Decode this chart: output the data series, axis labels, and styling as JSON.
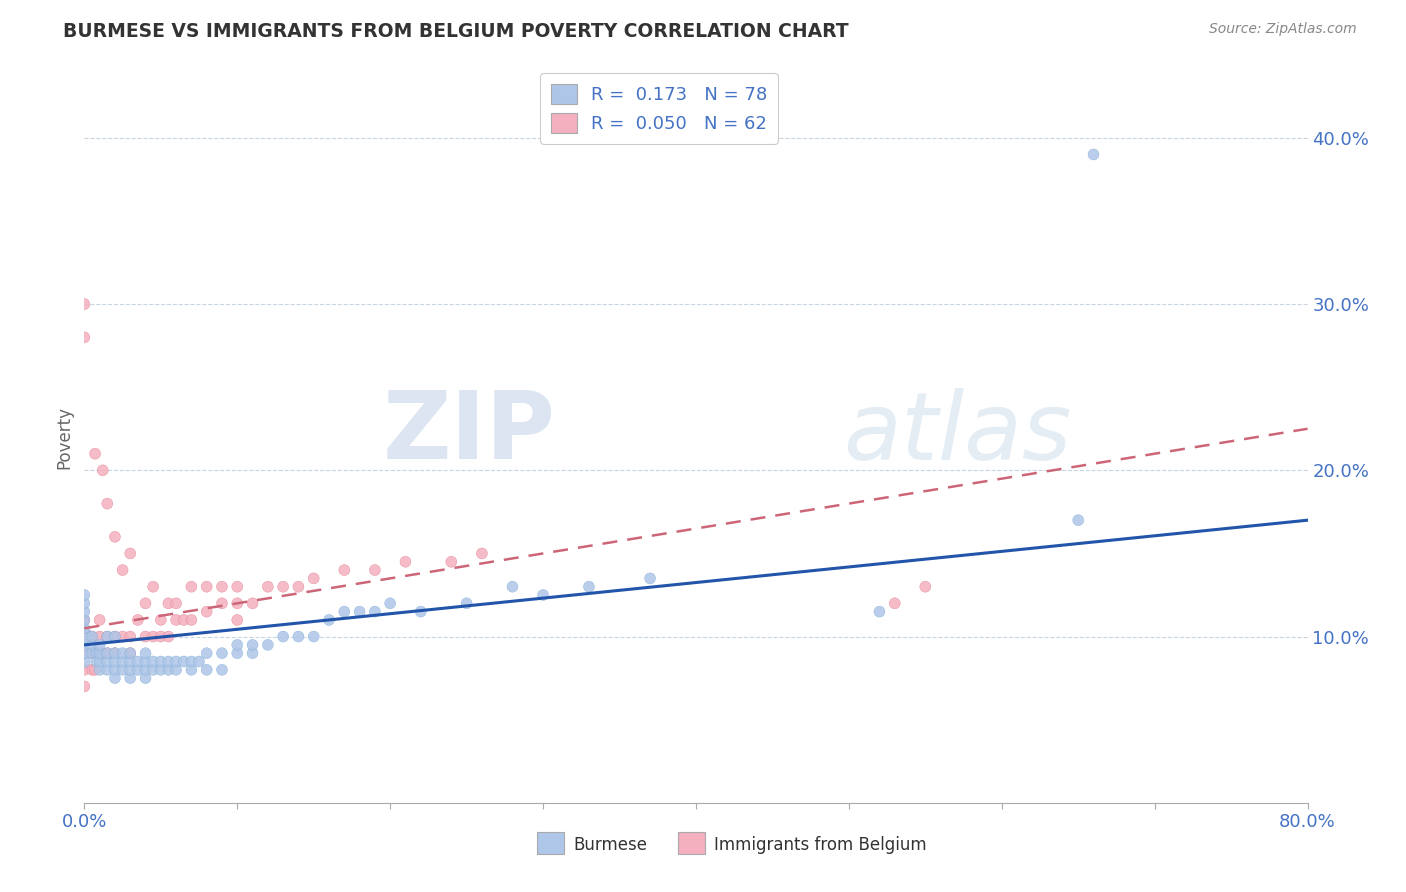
{
  "title": "BURMESE VS IMMIGRANTS FROM BELGIUM POVERTY CORRELATION CHART",
  "source": "Source: ZipAtlas.com",
  "ylabel": "Poverty",
  "ytick_labels": [
    "10.0%",
    "20.0%",
    "30.0%",
    "40.0%"
  ],
  "ytick_values": [
    0.1,
    0.2,
    0.3,
    0.4
  ],
  "xlim": [
    0.0,
    0.8
  ],
  "ylim": [
    0.0,
    0.44
  ],
  "watermark_zip": "ZIP",
  "watermark_atlas": "atlas",
  "burmese_color": "#aec6e8",
  "burmese_edge_color": "#7baad4",
  "belgium_color": "#f4b0be",
  "belgium_edge_color": "#e07a90",
  "burmese_line_color": "#2255aa",
  "belgium_line_color": "#cc6677",
  "blue_color": "#4472c4",
  "burmese_R": 0.173,
  "burmese_N": 78,
  "belgium_R": 0.05,
  "belgium_N": 62,
  "bur_line_x0": 0.0,
  "bur_line_y0": 0.095,
  "bur_line_x1": 0.8,
  "bur_line_y1": 0.17,
  "bel_line_x0": 0.0,
  "bel_line_y0": 0.105,
  "bel_line_x1": 0.8,
  "bel_line_y1": 0.225,
  "burmese_x": [
    0.0,
    0.0,
    0.0,
    0.0,
    0.0,
    0.0,
    0.0,
    0.0,
    0.0,
    0.005,
    0.005,
    0.005,
    0.008,
    0.008,
    0.01,
    0.01,
    0.01,
    0.01,
    0.015,
    0.015,
    0.015,
    0.015,
    0.02,
    0.02,
    0.02,
    0.02,
    0.02,
    0.025,
    0.025,
    0.025,
    0.03,
    0.03,
    0.03,
    0.03,
    0.035,
    0.035,
    0.04,
    0.04,
    0.04,
    0.04,
    0.045,
    0.045,
    0.05,
    0.05,
    0.055,
    0.055,
    0.06,
    0.06,
    0.065,
    0.07,
    0.07,
    0.075,
    0.08,
    0.08,
    0.09,
    0.09,
    0.1,
    0.1,
    0.11,
    0.11,
    0.12,
    0.13,
    0.14,
    0.15,
    0.16,
    0.17,
    0.18,
    0.19,
    0.2,
    0.22,
    0.25,
    0.28,
    0.3,
    0.33,
    0.37,
    0.52,
    0.65,
    0.66
  ],
  "burmese_y": [
    0.085,
    0.09,
    0.095,
    0.1,
    0.105,
    0.11,
    0.115,
    0.12,
    0.125,
    0.09,
    0.095,
    0.1,
    0.085,
    0.09,
    0.08,
    0.085,
    0.09,
    0.095,
    0.08,
    0.085,
    0.09,
    0.1,
    0.075,
    0.08,
    0.085,
    0.09,
    0.1,
    0.08,
    0.085,
    0.09,
    0.075,
    0.08,
    0.085,
    0.09,
    0.08,
    0.085,
    0.075,
    0.08,
    0.085,
    0.09,
    0.08,
    0.085,
    0.08,
    0.085,
    0.08,
    0.085,
    0.08,
    0.085,
    0.085,
    0.08,
    0.085,
    0.085,
    0.08,
    0.09,
    0.08,
    0.09,
    0.09,
    0.095,
    0.09,
    0.095,
    0.095,
    0.1,
    0.1,
    0.1,
    0.11,
    0.115,
    0.115,
    0.115,
    0.12,
    0.115,
    0.12,
    0.13,
    0.125,
    0.13,
    0.135,
    0.115,
    0.17,
    0.39
  ],
  "burmese_s": [
    30,
    25,
    25,
    50,
    25,
    25,
    25,
    25,
    25,
    25,
    25,
    25,
    25,
    25,
    25,
    25,
    25,
    25,
    25,
    25,
    25,
    25,
    25,
    25,
    25,
    25,
    25,
    25,
    25,
    25,
    25,
    25,
    25,
    25,
    25,
    25,
    25,
    25,
    25,
    25,
    25,
    25,
    25,
    25,
    25,
    25,
    25,
    25,
    25,
    25,
    25,
    25,
    25,
    25,
    25,
    25,
    25,
    25,
    25,
    25,
    25,
    25,
    25,
    25,
    25,
    25,
    25,
    25,
    25,
    25,
    25,
    25,
    25,
    25,
    25,
    25,
    25,
    25
  ],
  "belgium_x": [
    0.0,
    0.0,
    0.0,
    0.0,
    0.0,
    0.0,
    0.0,
    0.005,
    0.005,
    0.005,
    0.007,
    0.007,
    0.007,
    0.01,
    0.01,
    0.01,
    0.012,
    0.012,
    0.015,
    0.015,
    0.015,
    0.02,
    0.02,
    0.02,
    0.025,
    0.025,
    0.03,
    0.03,
    0.03,
    0.035,
    0.04,
    0.04,
    0.045,
    0.045,
    0.05,
    0.05,
    0.055,
    0.055,
    0.06,
    0.06,
    0.065,
    0.07,
    0.07,
    0.08,
    0.08,
    0.09,
    0.09,
    0.1,
    0.1,
    0.1,
    0.11,
    0.12,
    0.13,
    0.14,
    0.15,
    0.17,
    0.19,
    0.21,
    0.24,
    0.26,
    0.53,
    0.55
  ],
  "belgium_y": [
    0.07,
    0.08,
    0.09,
    0.1,
    0.11,
    0.28,
    0.3,
    0.08,
    0.09,
    0.1,
    0.08,
    0.09,
    0.21,
    0.09,
    0.1,
    0.11,
    0.09,
    0.2,
    0.09,
    0.1,
    0.18,
    0.09,
    0.1,
    0.16,
    0.1,
    0.14,
    0.09,
    0.1,
    0.15,
    0.11,
    0.1,
    0.12,
    0.1,
    0.13,
    0.1,
    0.11,
    0.1,
    0.12,
    0.11,
    0.12,
    0.11,
    0.11,
    0.13,
    0.115,
    0.13,
    0.12,
    0.13,
    0.11,
    0.12,
    0.13,
    0.12,
    0.13,
    0.13,
    0.13,
    0.135,
    0.14,
    0.14,
    0.145,
    0.145,
    0.15,
    0.12,
    0.13
  ],
  "belgium_s": [
    25,
    25,
    25,
    60,
    25,
    25,
    25,
    25,
    25,
    25,
    25,
    25,
    25,
    25,
    25,
    25,
    25,
    25,
    25,
    25,
    25,
    25,
    25,
    25,
    25,
    25,
    25,
    25,
    25,
    25,
    25,
    25,
    25,
    25,
    25,
    25,
    25,
    25,
    25,
    25,
    25,
    25,
    25,
    25,
    25,
    25,
    25,
    25,
    25,
    25,
    25,
    25,
    25,
    25,
    25,
    25,
    25,
    25,
    25,
    25,
    25,
    25
  ]
}
